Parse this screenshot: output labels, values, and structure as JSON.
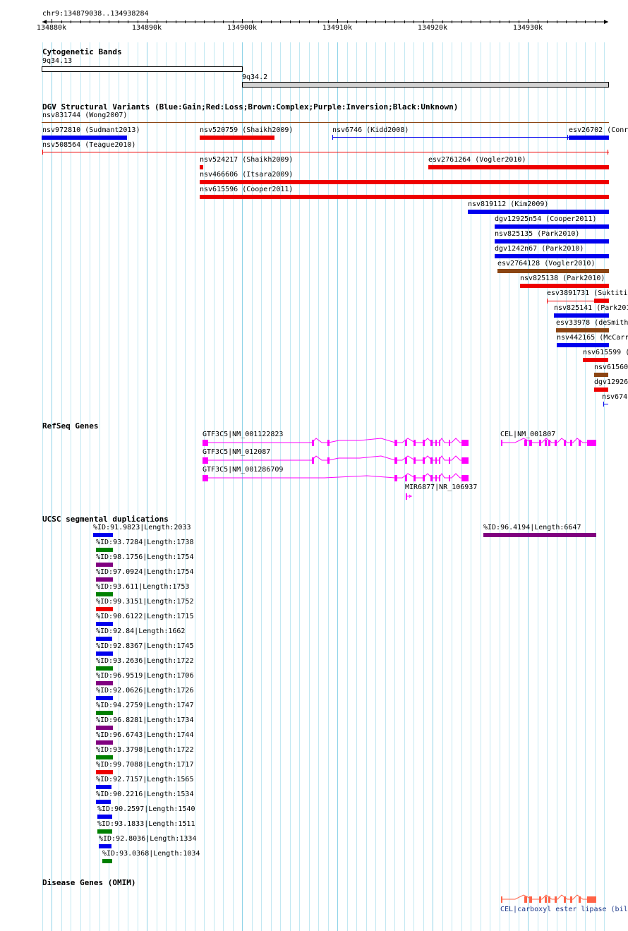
{
  "ruler": {
    "coords": "chr9:134879038..134938284",
    "ticks": [
      "134880k",
      "134890k",
      "134900k",
      "134910k",
      "134920k",
      "134930k"
    ]
  },
  "cyto": {
    "title": "Cytogenetic Bands",
    "bands": [
      {
        "label": "9q34.13",
        "fill": "#ffffff"
      },
      {
        "label": "9q34.2",
        "fill": "#d3d3d3"
      }
    ]
  },
  "dgv": {
    "title": "DGV Structural Variants (Blue:Gain;Red:Loss;Brown:Complex;Purple:Inversion;Black:Unknown)",
    "features": [
      {
        "label": "nsv831744 (Wong2007)",
        "color": "#8b4513"
      },
      {
        "label": "nsv972810 (Sudmant2013)",
        "color": "#0000ee"
      },
      {
        "label": "nsv520759 (Shaikh2009)",
        "color": "#ee0000"
      },
      {
        "label": "nsv6746 (Kidd2008)",
        "color": "#0000ee"
      },
      {
        "label": "esv26702 (Conr",
        "color": "#0000ee"
      },
      {
        "label": "nsv508564 (Teague2010)",
        "color": "#ee0000"
      },
      {
        "label": "nsv524217 (Shaikh2009)",
        "color": "#ee0000"
      },
      {
        "label": "esv2761264 (Vogler2010)",
        "color": "#ee0000"
      },
      {
        "label": "nsv466606 (Itsara2009)",
        "color": "#ee0000"
      },
      {
        "label": "nsv615596 (Cooper2011)",
        "color": "#ee0000"
      },
      {
        "label": "nsv819112 (Kim2009)",
        "color": "#0000ee"
      },
      {
        "label": "dgv12925n54 (Cooper2011)",
        "color": "#0000ee"
      },
      {
        "label": "nsv825135 (Park2010)",
        "color": "#0000ee"
      },
      {
        "label": "dgv1242n67 (Park2010)",
        "color": "#0000ee"
      },
      {
        "label": "esv2764128 (Vogler2010)",
        "color": "#8b4513"
      },
      {
        "label": "nsv825138 (Park2010)",
        "color": "#ee0000"
      },
      {
        "label": "esv3891731 (Suktitip",
        "color": "#ee0000"
      },
      {
        "label": "nsv825141 (Park201",
        "color": "#0000ee"
      },
      {
        "label": "esv33978 (deSmith",
        "color": "#8b4513"
      },
      {
        "label": "nsv442165 (McCarr",
        "color": "#0000ee"
      },
      {
        "label": "nsv615599 (",
        "color": "#ee0000"
      },
      {
        "label": "nsv61560",
        "color": "#8b4513"
      },
      {
        "label": "dgv12926",
        "color": "#ee0000"
      },
      {
        "label": "nsv674",
        "color": "#0000ee"
      }
    ]
  },
  "refseq": {
    "title": "RefSeq Genes",
    "color": "#ff00ff",
    "genes": [
      {
        "label": "GTF3C5|NM_001122823"
      },
      {
        "label": "CEL|NM_001807"
      },
      {
        "label": "GTF3C5|NM_012087"
      },
      {
        "label": "GTF3C5|NM_001286709"
      },
      {
        "label": "MIR6877|NR_106937"
      }
    ]
  },
  "segdup": {
    "title": "UCSC segmental duplications",
    "items": [
      {
        "label": "%ID:91.9823|Length:2033",
        "color": "#0000ee"
      },
      {
        "label": "%ID:96.4194|Length:6647",
        "color": "#800080"
      },
      {
        "label": "%ID:93.7284|Length:1738",
        "color": "#008000"
      },
      {
        "label": "%ID:98.1756|Length:1754",
        "color": "#800080"
      },
      {
        "label": "%ID:97.0924|Length:1754",
        "color": "#800080"
      },
      {
        "label": "%ID:93.611|Length:1753",
        "color": "#008000"
      },
      {
        "label": "%ID:99.3151|Length:1752",
        "color": "#ee0000"
      },
      {
        "label": "%ID:90.6122|Length:1715",
        "color": "#0000ee"
      },
      {
        "label": "%ID:92.84|Length:1662",
        "color": "#0000ee"
      },
      {
        "label": "%ID:92.8367|Length:1745",
        "color": "#0000ee"
      },
      {
        "label": "%ID:93.2636|Length:1722",
        "color": "#008000"
      },
      {
        "label": "%ID:96.9519|Length:1706",
        "color": "#800080"
      },
      {
        "label": "%ID:92.0626|Length:1726",
        "color": "#0000ee"
      },
      {
        "label": "%ID:94.2759|Length:1747",
        "color": "#008000"
      },
      {
        "label": "%ID:96.8281|Length:1734",
        "color": "#800080"
      },
      {
        "label": "%ID:96.6743|Length:1744",
        "color": "#800080"
      },
      {
        "label": "%ID:93.3798|Length:1722",
        "color": "#008000"
      },
      {
        "label": "%ID:99.7088|Length:1717",
        "color": "#ee0000"
      },
      {
        "label": "%ID:92.7157|Length:1565",
        "color": "#0000ee"
      },
      {
        "label": "%ID:90.2216|Length:1534",
        "color": "#0000ee"
      },
      {
        "label": "%ID:90.2597|Length:1540",
        "color": "#0000ee"
      },
      {
        "label": "%ID:93.1833|Length:1511",
        "color": "#008000"
      },
      {
        "label": "%ID:92.8036|Length:1334",
        "color": "#0000ee"
      },
      {
        "label": "%ID:93.0368|Length:1034",
        "color": "#008000"
      }
    ]
  },
  "omim": {
    "title": "Disease Genes (OMIM)",
    "color": "#ff6347",
    "gene_label": "CEL|carboxyl ester lipase (bil"
  }
}
